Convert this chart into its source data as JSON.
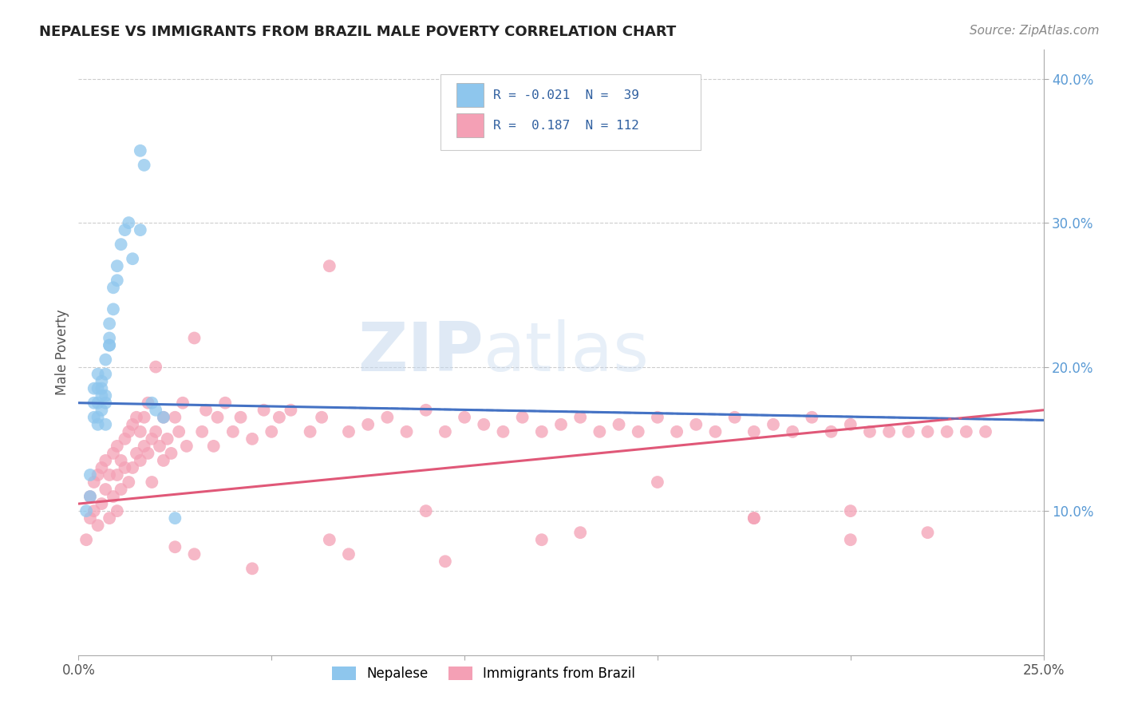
{
  "title": "NEPALESE VS IMMIGRANTS FROM BRAZIL MALE POVERTY CORRELATION CHART",
  "source_text": "Source: ZipAtlas.com",
  "ylabel": "Male Poverty",
  "xlim": [
    0.0,
    0.25
  ],
  "ylim": [
    0.0,
    0.42
  ],
  "xtick_labels": [
    "0.0%",
    "",
    "",
    "",
    "",
    "25.0%"
  ],
  "xtick_vals": [
    0.0,
    0.05,
    0.1,
    0.15,
    0.2,
    0.25
  ],
  "ytick_labels": [
    "10.0%",
    "20.0%",
    "30.0%",
    "40.0%"
  ],
  "ytick_vals": [
    0.1,
    0.2,
    0.3,
    0.4
  ],
  "color_nepalese": "#8EC6ED",
  "color_brazil": "#F4A0B5",
  "color_nepalese_line": "#4472C4",
  "color_brazil_line": "#E05878",
  "watermark_zip": "ZIP",
  "watermark_atlas": "atlas",
  "nepalese_x": [
    0.002,
    0.003,
    0.003,
    0.004,
    0.004,
    0.004,
    0.005,
    0.005,
    0.005,
    0.005,
    0.005,
    0.006,
    0.006,
    0.006,
    0.006,
    0.007,
    0.007,
    0.007,
    0.007,
    0.007,
    0.008,
    0.008,
    0.008,
    0.008,
    0.009,
    0.009,
    0.01,
    0.01,
    0.011,
    0.012,
    0.013,
    0.014,
    0.016,
    0.016,
    0.017,
    0.019,
    0.02,
    0.022,
    0.025
  ],
  "nepalese_y": [
    0.1,
    0.125,
    0.11,
    0.165,
    0.175,
    0.185,
    0.16,
    0.175,
    0.185,
    0.195,
    0.165,
    0.17,
    0.18,
    0.19,
    0.185,
    0.175,
    0.18,
    0.195,
    0.205,
    0.16,
    0.215,
    0.22,
    0.23,
    0.215,
    0.24,
    0.255,
    0.27,
    0.26,
    0.285,
    0.295,
    0.3,
    0.275,
    0.35,
    0.295,
    0.34,
    0.175,
    0.17,
    0.165,
    0.095
  ],
  "brazil_x": [
    0.002,
    0.003,
    0.003,
    0.004,
    0.004,
    0.005,
    0.005,
    0.006,
    0.006,
    0.007,
    0.007,
    0.008,
    0.008,
    0.009,
    0.009,
    0.01,
    0.01,
    0.01,
    0.011,
    0.011,
    0.012,
    0.012,
    0.013,
    0.013,
    0.014,
    0.014,
    0.015,
    0.015,
    0.016,
    0.016,
    0.017,
    0.017,
    0.018,
    0.018,
    0.019,
    0.019,
    0.02,
    0.02,
    0.021,
    0.022,
    0.022,
    0.023,
    0.024,
    0.025,
    0.026,
    0.027,
    0.028,
    0.03,
    0.032,
    0.033,
    0.035,
    0.036,
    0.038,
    0.04,
    0.042,
    0.045,
    0.048,
    0.05,
    0.052,
    0.055,
    0.06,
    0.063,
    0.065,
    0.07,
    0.075,
    0.08,
    0.085,
    0.09,
    0.095,
    0.1,
    0.105,
    0.11,
    0.115,
    0.12,
    0.125,
    0.13,
    0.135,
    0.14,
    0.145,
    0.15,
    0.155,
    0.16,
    0.165,
    0.17,
    0.175,
    0.18,
    0.185,
    0.19,
    0.195,
    0.2,
    0.205,
    0.21,
    0.215,
    0.22,
    0.225,
    0.23,
    0.235,
    0.065,
    0.09,
    0.13,
    0.15,
    0.175,
    0.2,
    0.22,
    0.045,
    0.07,
    0.095,
    0.12,
    0.175,
    0.2,
    0.025,
    0.03
  ],
  "brazil_y": [
    0.08,
    0.095,
    0.11,
    0.1,
    0.12,
    0.09,
    0.125,
    0.105,
    0.13,
    0.115,
    0.135,
    0.095,
    0.125,
    0.11,
    0.14,
    0.1,
    0.125,
    0.145,
    0.115,
    0.135,
    0.13,
    0.15,
    0.12,
    0.155,
    0.13,
    0.16,
    0.14,
    0.165,
    0.135,
    0.155,
    0.145,
    0.165,
    0.14,
    0.175,
    0.15,
    0.12,
    0.155,
    0.2,
    0.145,
    0.165,
    0.135,
    0.15,
    0.14,
    0.165,
    0.155,
    0.175,
    0.145,
    0.22,
    0.155,
    0.17,
    0.145,
    0.165,
    0.175,
    0.155,
    0.165,
    0.15,
    0.17,
    0.155,
    0.165,
    0.17,
    0.155,
    0.165,
    0.27,
    0.155,
    0.16,
    0.165,
    0.155,
    0.17,
    0.155,
    0.165,
    0.16,
    0.155,
    0.165,
    0.155,
    0.16,
    0.165,
    0.155,
    0.16,
    0.155,
    0.165,
    0.155,
    0.16,
    0.155,
    0.165,
    0.155,
    0.16,
    0.155,
    0.165,
    0.155,
    0.16,
    0.155,
    0.155,
    0.155,
    0.155,
    0.155,
    0.155,
    0.155,
    0.08,
    0.1,
    0.085,
    0.12,
    0.095,
    0.1,
    0.085,
    0.06,
    0.07,
    0.065,
    0.08,
    0.095,
    0.08,
    0.075,
    0.07
  ],
  "line_nep_x0": 0.0,
  "line_nep_x1": 0.25,
  "line_nep_y0": 0.175,
  "line_nep_y1": 0.163,
  "line_bra_x0": 0.0,
  "line_bra_x1": 0.25,
  "line_bra_y0": 0.105,
  "line_bra_y1": 0.17
}
